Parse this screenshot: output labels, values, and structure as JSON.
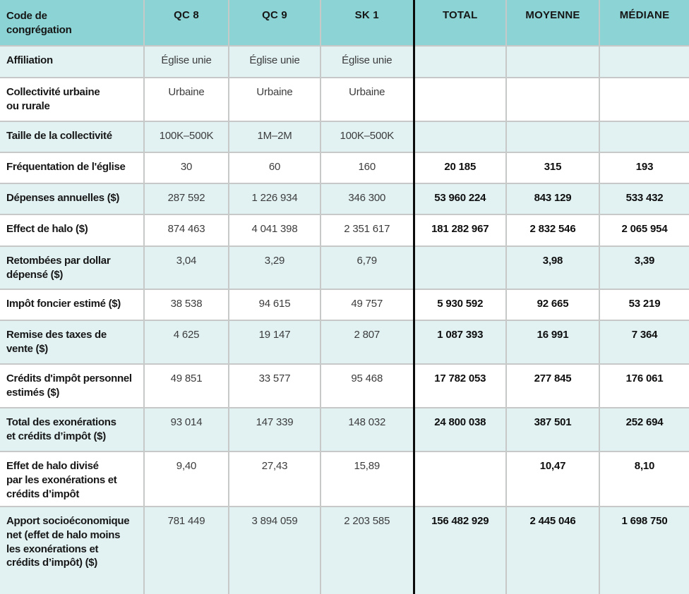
{
  "colors": {
    "header_bg": "#8bd3d5",
    "stripe_bg": "#e2f2f3",
    "row_bg": "#ffffff",
    "grid_line": "#c7c9c9",
    "divider_line": "#0b0b0b",
    "text": "#161616"
  },
  "chart_data": {
    "type": "table",
    "title": "",
    "header_label": "Code de\ncongrégation",
    "columns": [
      "QC 8",
      "QC 9",
      "SK 1",
      "TOTAL",
      "MOYENNE",
      "MÉDIANE"
    ],
    "rows": [
      {
        "label": "Affiliation",
        "values": [
          "Église unie",
          "Église unie",
          "Église unie",
          "",
          "",
          ""
        ]
      },
      {
        "label": "Collectivité urbaine\nou rurale",
        "values": [
          "Urbaine",
          "Urbaine",
          "Urbaine",
          "",
          "",
          ""
        ]
      },
      {
        "label": "Taille de la collectivité",
        "values": [
          "100K–500K",
          "1M–2M",
          "100K–500K",
          "",
          "",
          ""
        ]
      },
      {
        "label": "Fréquentation de l'église",
        "values": [
          "30",
          "60",
          "160",
          "20 185",
          "315",
          "193"
        ]
      },
      {
        "label": "Dépenses annuelles ($)",
        "values": [
          "287 592",
          "1 226 934",
          "346 300",
          "53 960 224",
          "843 129",
          "533 432"
        ]
      },
      {
        "label": "Effect de halo ($)",
        "values": [
          "874 463",
          "4 041 398",
          "2 351 617",
          "181 282 967",
          "2 832 546",
          "2 065 954"
        ]
      },
      {
        "label": "Retombées par dollar\ndépensé ($)",
        "values": [
          "3,04",
          "3,29",
          "6,79",
          "",
          "3,98",
          "3,39"
        ]
      },
      {
        "label": "Impôt foncier estimé ($)",
        "values": [
          "38 538",
          "94 615",
          "49 757",
          "5 930 592",
          "92 665",
          "53 219"
        ]
      },
      {
        "label": "Remise des taxes de\nvente ($)",
        "values": [
          "4 625",
          "19 147",
          "2 807",
          "1 087 393",
          "16 991",
          "7 364"
        ]
      },
      {
        "label": "Crédits d'impôt personnel\nestimés ($)",
        "values": [
          "49 851",
          "33 577",
          "95 468",
          "17 782 053",
          "277 845",
          "176 061"
        ]
      },
      {
        "label": "Total des exonérations\net crédits d’impôt ($)",
        "values": [
          "93 014",
          "147 339",
          "148 032",
          "24 800 038",
          "387 501",
          "252 694"
        ]
      },
      {
        "label": "Effet de halo divisé\npar les exonérations et\ncrédits d’impôt",
        "values": [
          "9,40",
          "27,43",
          "15,89",
          "",
          "10,47",
          "8,10"
        ]
      },
      {
        "label": "Apport socioéconomique\nnet (effet de halo moins\nles exonérations et\ncrédits d’impôt) ($)",
        "values": [
          "781 449",
          "3 894 059",
          "2 203 585",
          "156 482 929",
          "2 445 046",
          "1 698 750"
        ]
      }
    ]
  }
}
